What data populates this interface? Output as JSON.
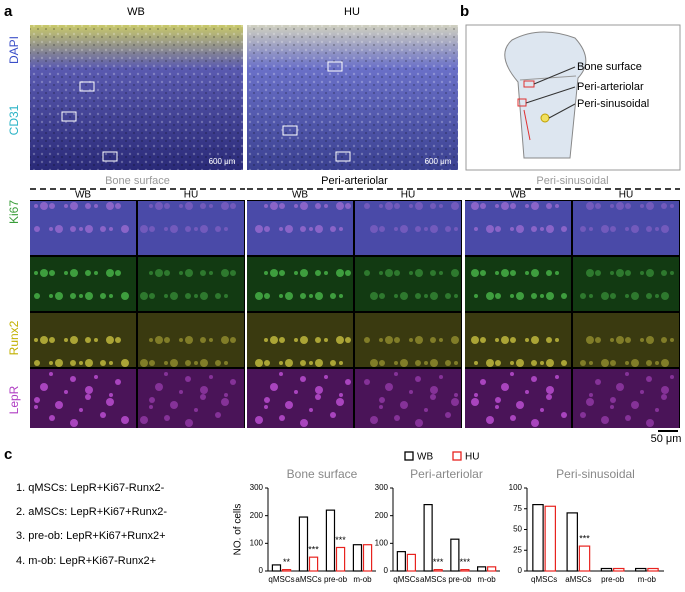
{
  "panel_labels": [
    "a",
    "b",
    "c"
  ],
  "top": {
    "columns": [
      "WB",
      "HU"
    ],
    "scale_bar": "600 μm"
  },
  "stains": [
    {
      "text": "DAPI",
      "color": "#3b4fc8"
    },
    {
      "text": "CD31",
      "color": "#2ab3c6"
    },
    {
      "text": "Ki67",
      "color": "#3a9e3a"
    },
    {
      "text": "Runx2",
      "color": "#c2b000"
    },
    {
      "text": "LepR",
      "color": "#b03ec4"
    }
  ],
  "diagram": {
    "labels": [
      "Bone surface",
      "Peri-arteriolar",
      "Peri-sinusoidal"
    ]
  },
  "regions": [
    {
      "title": "Bone surface",
      "columns": [
        "WB",
        "HU"
      ]
    },
    {
      "title": "Peri-arteriolar",
      "columns": [
        "WB",
        "HU"
      ]
    },
    {
      "title": "Peri-sinusoidal",
      "columns": [
        "WB",
        "HU"
      ]
    }
  ],
  "region_scale_bar": "50 μm",
  "definitions": [
    "1. qMSCs: LepR+Ki67-Runx2-",
    "2. aMSCs: LepR+Ki67+Runx2-",
    "3. pre-ob: LepR+Ki67+Runx2+",
    "4. m-ob: LepR+Ki67-Runx2+"
  ],
  "legend": [
    "WB",
    "HU"
  ],
  "chart_data": [
    {
      "type": "bar",
      "title": "Bone surface",
      "y_label": "NO. of cells",
      "categories": [
        "qMSCs",
        "aMSCs",
        "pre-ob",
        "m-ob"
      ],
      "series": [
        {
          "color": "#000000",
          "values": [
            22,
            195,
            220,
            95
          ]
        },
        {
          "color": "#e8231f",
          "values": [
            5,
            50,
            85,
            95
          ],
          "annotations": [
            "**",
            "***",
            "***",
            null
          ]
        }
      ],
      "ylim": [
        0,
        300
      ],
      "yticks": [
        0,
        100,
        200,
        300
      ]
    },
    {
      "type": "bar",
      "title": "Peri-arteriolar",
      "categories": [
        "qMSCs",
        "aMSCs",
        "pre-ob",
        "m-ob"
      ],
      "series": [
        {
          "color": "#000000",
          "values": [
            70,
            240,
            115,
            15
          ]
        },
        {
          "color": "#e8231f",
          "values": [
            60,
            5,
            5,
            15
          ],
          "annotations": [
            null,
            "***",
            "***",
            null
          ]
        }
      ],
      "ylim": [
        0,
        300
      ],
      "yticks": [
        0,
        100,
        200,
        300
      ]
    },
    {
      "type": "bar",
      "title": "Peri-sinusoidal",
      "categories": [
        "qMSCs",
        "aMSCs",
        "pre-ob",
        "m-ob"
      ],
      "series": [
        {
          "color": "#000000",
          "values": [
            80,
            70,
            3,
            3
          ]
        },
        {
          "color": "#e8231f",
          "values": [
            78,
            30,
            3,
            3
          ],
          "annotations": [
            null,
            "***",
            null,
            null
          ]
        }
      ],
      "ylim": [
        0,
        100
      ],
      "yticks": [
        0,
        25,
        50,
        75,
        100
      ]
    }
  ]
}
